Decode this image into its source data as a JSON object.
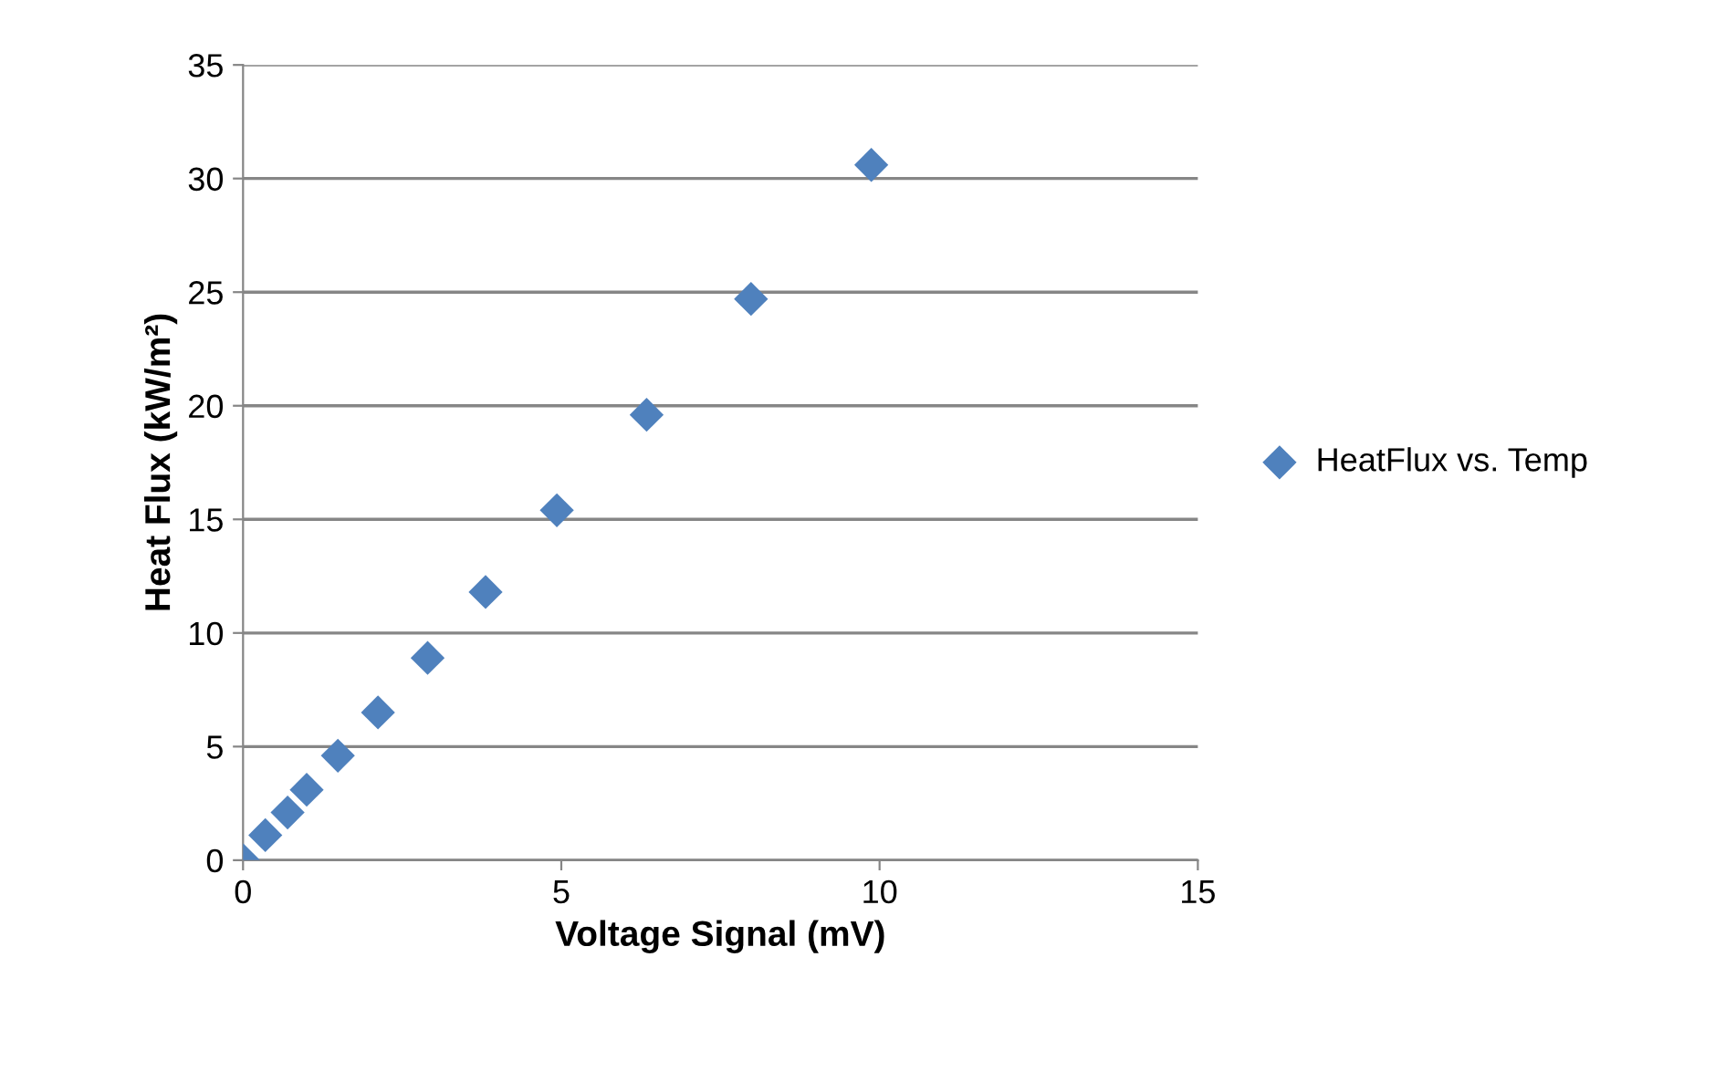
{
  "chart_data": {
    "type": "scatter",
    "xlabel": "Voltage Signal (mV)",
    "ylabel": "Heat Flux (kW/m²)",
    "series": [
      {
        "name": "HeatFlux vs. Temp",
        "color": "#4f81bd",
        "x": [
          0,
          0.35,
          0.7,
          1.0,
          1.49,
          2.12,
          2.9,
          3.81,
          4.93,
          6.34,
          7.98,
          9.87
        ],
        "values": [
          0,
          1.1,
          2.1,
          3.1,
          4.6,
          6.5,
          8.9,
          11.8,
          15.4,
          19.6,
          24.7,
          30.6
        ]
      }
    ],
    "marker": "diamond",
    "xlim": [
      0,
      15
    ],
    "ylim": [
      0,
      35
    ],
    "xticks": [
      0,
      5,
      10,
      15
    ],
    "yticks": [
      0,
      5,
      10,
      15,
      20,
      25,
      30,
      35
    ],
    "grid": "y",
    "legend": "right"
  }
}
